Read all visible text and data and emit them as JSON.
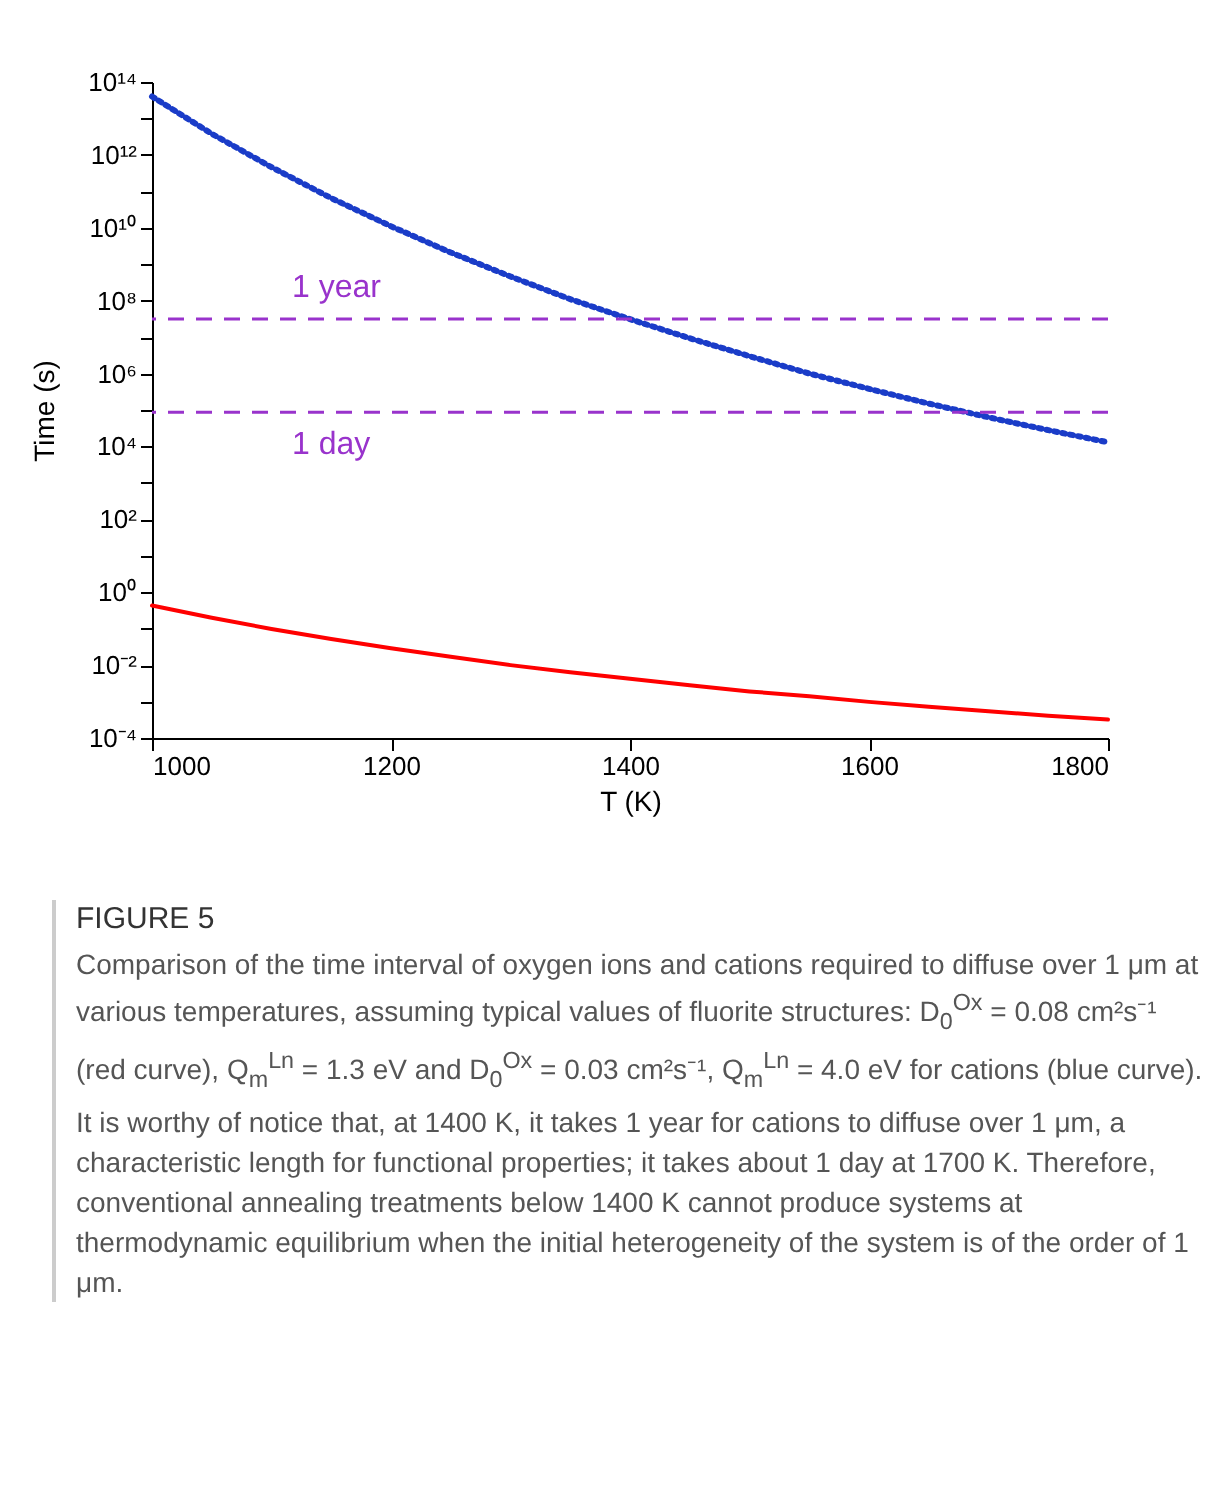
{
  "chart_data": {
    "type": "line",
    "xlabel": "T (K)",
    "ylabel": "Time (s)",
    "x": [
      1000,
      1050,
      1100,
      1150,
      1200,
      1250,
      1300,
      1350,
      1400,
      1450,
      1500,
      1550,
      1600,
      1650,
      1700,
      1750,
      1800
    ],
    "series": [
      {
        "color": "#ff0000",
        "line_style": "solid",
        "values": [
          0.43,
          0.2,
          0.098,
          0.052,
          0.029,
          0.017,
          0.01,
          0.0064,
          0.0042,
          0.0028,
          0.0019,
          0.0014,
          0.00098,
          0.00072,
          0.00054,
          0.00041,
          0.00032
        ]
      },
      {
        "color": "#1a3cc8",
        "line_style": "dotted",
        "values": [
          40000000000000.0,
          3800000000000.0,
          460000000000.0,
          65000000000.0,
          11000000000.0,
          2100000000.0,
          460000000.0,
          110000000.0,
          31000000.0,
          9300000.0,
          3000000.0,
          1000000.0,
          380000.0,
          150000.0,
          63000.0,
          28000.0,
          13000.0
        ]
      }
    ],
    "log": "y",
    "xlim": [
      1000,
      1800
    ],
    "xticks": [
      1000,
      1200,
      1400,
      1600,
      1800
    ],
    "ylim": [
      0.0001,
      100000000000000.0
    ],
    "yticks": [
      {
        "value": 0.0001,
        "label": "10⁻⁴"
      },
      {
        "value": 0.001,
        "label": null
      },
      {
        "value": 0.01,
        "label": "10⁻²"
      },
      {
        "value": 0.1,
        "label": null
      },
      {
        "value": 1,
        "label": "10⁰"
      },
      {
        "value": 10,
        "label": null
      },
      {
        "value": 100,
        "label": "10²"
      },
      {
        "value": 1000,
        "label": null
      },
      {
        "value": 10000,
        "label": "10⁴"
      },
      {
        "value": 100000,
        "label": null
      },
      {
        "value": 1000000,
        "label": "10⁶"
      },
      {
        "value": 10000000,
        "label": null
      },
      {
        "value": 100000000,
        "label": "10⁸"
      },
      {
        "value": 1000000000,
        "label": null
      },
      {
        "value": 10000000000,
        "label": "10¹⁰"
      },
      {
        "value": 100000000000,
        "label": null
      },
      {
        "value": 1000000000000,
        "label": "10¹²"
      },
      {
        "value": 10000000000000,
        "label": null
      },
      {
        "value": 100000000000000,
        "label": "10¹⁴"
      }
    ],
    "grid": false,
    "marker": "none",
    "ref_lines": [
      {
        "axis": "y",
        "value": 31536000,
        "label": "1 year",
        "color": "#9933cc",
        "line_style": "dashed"
      },
      {
        "axis": "y",
        "value": 86400,
        "label": "1 day",
        "color": "#9933cc",
        "line_style": "dashed"
      }
    ],
    "annotations": [
      "FIGURE 5",
      "Comparison of the time interval of oxygen ions and cations required to diffuse over 1 μm at various temperatures, assuming typical values of fluorite structures: D$_{0}$$^{Ox}$ = 0.08 cm²s⁻¹ (red curve), Q$_{m}$$^{Ln}$ = 1.3 eV and D$_{0}$$^{Ox}$ = 0.03 cm²s⁻¹, Q$_{m}$$^{Ln}$ = 4.0 eV for cations (blue curve). It is worthy of notice that, at 1400 K, it takes 1 year for cations to diffuse over 1 μm, a characteristic length for functional properties; it takes about 1 day at 1700 K. Therefore, conventional annealing treatments below 1400 K cannot produce systems at thermodynamic equilibrium when the initial heterogeneity of the system is of the order of 1 μm."
    ]
  }
}
